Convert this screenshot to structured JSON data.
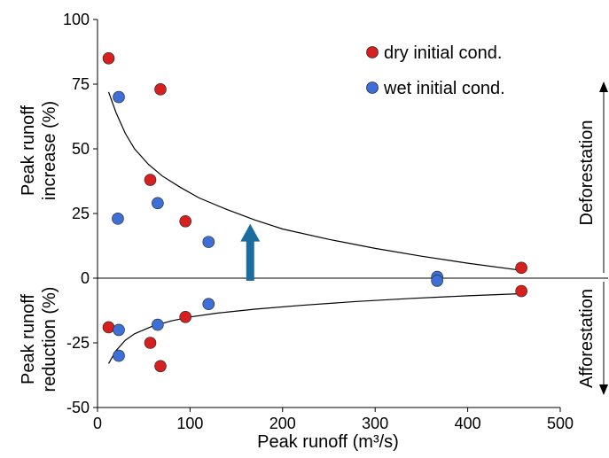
{
  "chart_data": {
    "type": "scatter",
    "xlabel": "Peak runoff (m³/s)",
    "ylabel_top": [
      "Peak runoff",
      "increase (%)"
    ],
    "ylabel_bottom": [
      "Peak runoff",
      "reduction (%)"
    ],
    "xlim": [
      0,
      500
    ],
    "ylim": [
      -50,
      100
    ],
    "x_ticks": [
      "0",
      "100",
      "200",
      "300",
      "400",
      "500"
    ],
    "y_ticks": [
      "-50",
      "-25",
      "0",
      "25",
      "50",
      "75",
      "100"
    ],
    "grid": false,
    "legend": {
      "position": "top-right"
    },
    "series": [
      {
        "name": "dry initial cond.",
        "color": "#d62020",
        "points": [
          {
            "x": 12,
            "y": 85
          },
          {
            "x": 68,
            "y": 73
          },
          {
            "x": 57,
            "y": 38
          },
          {
            "x": 95,
            "y": 22
          },
          {
            "x": 458,
            "y": 4
          },
          {
            "x": 12,
            "y": -19
          },
          {
            "x": 57,
            "y": -25
          },
          {
            "x": 95,
            "y": -15
          },
          {
            "x": 68,
            "y": -34
          },
          {
            "x": 458,
            "y": -5
          }
        ]
      },
      {
        "name": "wet initial cond.",
        "color": "#3d6fd6",
        "points": [
          {
            "x": 23,
            "y": 70
          },
          {
            "x": 65,
            "y": 29
          },
          {
            "x": 22,
            "y": 23
          },
          {
            "x": 120,
            "y": 14
          },
          {
            "x": 367,
            "y": 0.5
          },
          {
            "x": 367,
            "y": -1
          },
          {
            "x": 23,
            "y": -20
          },
          {
            "x": 65,
            "y": -18
          },
          {
            "x": 120,
            "y": -10
          },
          {
            "x": 23,
            "y": -30
          }
        ]
      }
    ],
    "trend_upper": [
      [
        12,
        72
      ],
      [
        20,
        64
      ],
      [
        30,
        56
      ],
      [
        40,
        50
      ],
      [
        55,
        44
      ],
      [
        70,
        39.5
      ],
      [
        90,
        35
      ],
      [
        110,
        31
      ],
      [
        140,
        26.5
      ],
      [
        170,
        22.5
      ],
      [
        200,
        19
      ],
      [
        250,
        15
      ],
      [
        300,
        11.5
      ],
      [
        350,
        8.5
      ],
      [
        400,
        5.8
      ],
      [
        458,
        3
      ]
    ],
    "trend_lower": [
      [
        12,
        -33
      ],
      [
        20,
        -28
      ],
      [
        30,
        -24
      ],
      [
        40,
        -21.5
      ],
      [
        60,
        -18.5
      ],
      [
        80,
        -16.5
      ],
      [
        100,
        -15
      ],
      [
        130,
        -13.5
      ],
      [
        170,
        -12
      ],
      [
        220,
        -10.5
      ],
      [
        280,
        -9
      ],
      [
        340,
        -7.8
      ],
      [
        400,
        -6.8
      ],
      [
        458,
        -6
      ]
    ],
    "arrow": {
      "x": 165,
      "y_from": -1,
      "y_to": 21,
      "color": "#1a6d9e"
    },
    "side_labels": {
      "upper": "Deforestation",
      "lower": "Afforestation"
    }
  }
}
